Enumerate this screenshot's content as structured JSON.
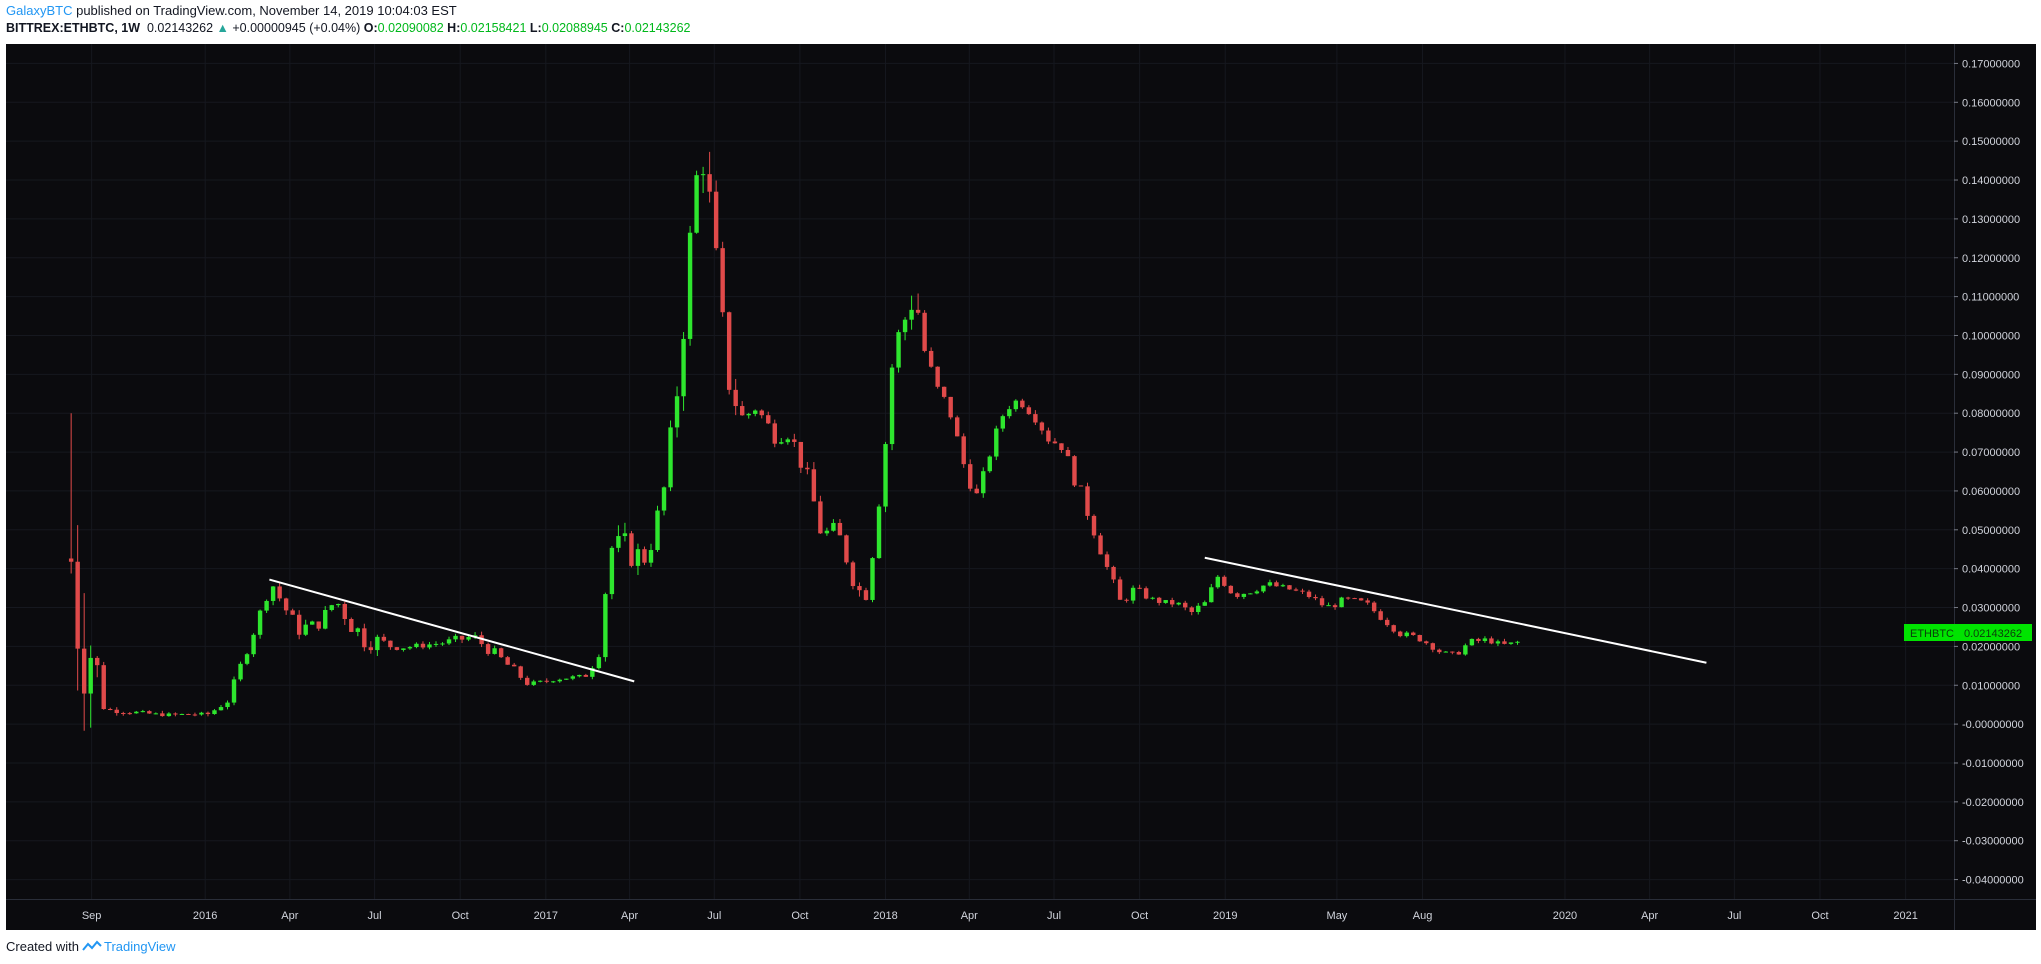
{
  "header": {
    "author": "GalaxyBTC",
    "published_text": "published on TradingView.com, November 14, 2019 10:04:03 EST",
    "symbol": "BITTREX:ETHBTC, 1W",
    "last": "0.02143262",
    "change": "+0.00000945 (+0.04%)",
    "open_label": "O:",
    "open": "0.02090082",
    "high_label": "H:",
    "high": "0.02158421",
    "low_label": "L:",
    "low": "0.02088945",
    "close_label": "C:",
    "close": "0.02143262"
  },
  "footer": {
    "created_with": "Created with",
    "brand": "TradingView"
  },
  "colors": {
    "background": "#0b0b0e",
    "up": "#2ee62e",
    "down": "#e04a4a",
    "trendline": "#ffffff",
    "axis_text": "#d1d4dc",
    "price_label": "#00e400"
  },
  "chart_data": {
    "type": "candlestick",
    "interval": "1W",
    "price_label": {
      "text": "ETHBTC",
      "value": "0.02143262"
    },
    "y_axis": {
      "min": -0.045,
      "max": 0.175,
      "ticks": [
        "0.17000000",
        "0.16000000",
        "0.15000000",
        "0.14000000",
        "0.13000000",
        "0.12000000",
        "0.11000000",
        "0.10000000",
        "0.09000000",
        "0.08000000",
        "0.07000000",
        "0.06000000",
        "0.05000000",
        "0.04000000",
        "0.03000000",
        "0.02000000",
        "0.01000000",
        "-0.00000000",
        "-0.01000000",
        "-0.02000000",
        "-0.03000000",
        "-0.04000000"
      ]
    },
    "x_axis": {
      "start": "2015-06-01",
      "end": "2021-02-22",
      "ticks": [
        {
          "label": "Sep",
          "date": "2015-09-01"
        },
        {
          "label": "2016",
          "date": "2016-01-01"
        },
        {
          "label": "Apr",
          "date": "2016-04-01"
        },
        {
          "label": "Jul",
          "date": "2016-07-01"
        },
        {
          "label": "Oct",
          "date": "2016-10-01"
        },
        {
          "label": "2017",
          "date": "2017-01-01"
        },
        {
          "label": "Apr",
          "date": "2017-04-01"
        },
        {
          "label": "Jul",
          "date": "2017-07-01"
        },
        {
          "label": "Oct",
          "date": "2017-10-01"
        },
        {
          "label": "2018",
          "date": "2018-01-01"
        },
        {
          "label": "Apr",
          "date": "2018-04-01"
        },
        {
          "label": "Jul",
          "date": "2018-07-01"
        },
        {
          "label": "Oct",
          "date": "2018-10-01"
        },
        {
          "label": "2019",
          "date": "2019-01-01"
        },
        {
          "label": "May",
          "date": "2019-05-01"
        },
        {
          "label": "Aug",
          "date": "2019-08-01"
        },
        {
          "label": "2020",
          "date": "2020-01-01"
        },
        {
          "label": "Apr",
          "date": "2020-04-01"
        },
        {
          "label": "Jul",
          "date": "2020-07-01"
        },
        {
          "label": "Oct",
          "date": "2020-10-01"
        },
        {
          "label": "2021",
          "date": "2021-01-01"
        }
      ]
    },
    "trendlines": [
      {
        "name": "trendline-2016",
        "from": {
          "date": "2016-03-10",
          "value": 0.0372
        },
        "to": {
          "date": "2017-04-06",
          "value": 0.011
        }
      },
      {
        "name": "trendline-2019",
        "from": {
          "date": "2018-12-10",
          "value": 0.0428
        },
        "to": {
          "date": "2020-06-01",
          "value": 0.0158
        }
      }
    ],
    "anchors": [
      [
        "2015-08-10",
        0.005,
        0.08
      ],
      [
        "2015-09-15",
        0.003,
        0.0045
      ],
      [
        "2015-11-15",
        0.002,
        0.0028
      ],
      [
        "2016-01-05",
        0.0022,
        0.003
      ],
      [
        "2016-01-25",
        0.005,
        0.007
      ],
      [
        "2016-02-20",
        0.021,
        0.024
      ],
      [
        "2016-03-12",
        0.035,
        0.038
      ],
      [
        "2016-04-08",
        0.022,
        0.027
      ],
      [
        "2016-05-01",
        0.024,
        0.027
      ],
      [
        "2016-05-20",
        0.03,
        0.034
      ],
      [
        "2016-06-15",
        0.019,
        0.027
      ],
      [
        "2016-07-25",
        0.019,
        0.02
      ],
      [
        "2016-09-15",
        0.02,
        0.022
      ],
      [
        "2016-10-15",
        0.021,
        0.024
      ],
      [
        "2016-11-15",
        0.015,
        0.018
      ],
      [
        "2016-12-15",
        0.009,
        0.011
      ],
      [
        "2017-01-10",
        0.011,
        0.012
      ],
      [
        "2017-02-15",
        0.012,
        0.013
      ],
      [
        "2017-03-01",
        0.018,
        0.022
      ],
      [
        "2017-03-10",
        0.043,
        0.048
      ],
      [
        "2017-03-25",
        0.04,
        0.05
      ],
      [
        "2017-04-20",
        0.04,
        0.045
      ],
      [
        "2017-05-10",
        0.06,
        0.065
      ],
      [
        "2017-05-25",
        0.085,
        0.1
      ],
      [
        "2017-06-10",
        0.135,
        0.142
      ],
      [
        "2017-06-20",
        0.14,
        0.155
      ],
      [
        "2017-07-01",
        0.11,
        0.13
      ],
      [
        "2017-07-15",
        0.085,
        0.095
      ],
      [
        "2017-07-30",
        0.075,
        0.082
      ],
      [
        "2017-08-15",
        0.08,
        0.083
      ],
      [
        "2017-09-01",
        0.072,
        0.078
      ],
      [
        "2017-09-20",
        0.073,
        0.077
      ],
      [
        "2017-10-10",
        0.06,
        0.065
      ],
      [
        "2017-10-25",
        0.045,
        0.052
      ],
      [
        "2017-11-10",
        0.048,
        0.052
      ],
      [
        "2017-11-30",
        0.033,
        0.038
      ],
      [
        "2017-12-10",
        0.03,
        0.035
      ],
      [
        "2017-12-20",
        0.045,
        0.05
      ],
      [
        "2018-01-01",
        0.07,
        0.075
      ],
      [
        "2018-01-10",
        0.095,
        0.1
      ],
      [
        "2018-01-20",
        0.1,
        0.105
      ],
      [
        "2018-02-01",
        0.103,
        0.124
      ],
      [
        "2018-02-10",
        0.095,
        0.1
      ],
      [
        "2018-02-25",
        0.085,
        0.088
      ],
      [
        "2018-03-10",
        0.08,
        0.083
      ],
      [
        "2018-03-25",
        0.065,
        0.07
      ],
      [
        "2018-04-10",
        0.056,
        0.06
      ],
      [
        "2018-04-25",
        0.07,
        0.073
      ],
      [
        "2018-05-10",
        0.08,
        0.083
      ],
      [
        "2018-05-25",
        0.082,
        0.085
      ],
      [
        "2018-06-10",
        0.078,
        0.081
      ],
      [
        "2018-06-25",
        0.072,
        0.075
      ],
      [
        "2018-07-10",
        0.07,
        0.073
      ],
      [
        "2018-07-25",
        0.06,
        0.064
      ],
      [
        "2018-08-10",
        0.05,
        0.055
      ],
      [
        "2018-08-25",
        0.04,
        0.043
      ],
      [
        "2018-09-10",
        0.03,
        0.033
      ],
      [
        "2018-09-25",
        0.033,
        0.036
      ],
      [
        "2018-10-20",
        0.031,
        0.032
      ],
      [
        "2018-11-10",
        0.03,
        0.032
      ],
      [
        "2018-11-25",
        0.027,
        0.03
      ],
      [
        "2018-12-10",
        0.03,
        0.032
      ],
      [
        "2018-12-25",
        0.037,
        0.04
      ],
      [
        "2019-01-10",
        0.032,
        0.035
      ],
      [
        "2019-01-25",
        0.033,
        0.035
      ],
      [
        "2019-02-15",
        0.035,
        0.037
      ],
      [
        "2019-03-10",
        0.034,
        0.0355
      ],
      [
        "2019-04-01",
        0.032,
        0.034
      ],
      [
        "2019-04-20",
        0.029,
        0.031
      ],
      [
        "2019-05-10",
        0.031,
        0.033
      ],
      [
        "2019-06-01",
        0.03,
        0.032
      ],
      [
        "2019-06-20",
        0.026,
        0.028
      ],
      [
        "2019-07-10",
        0.022,
        0.024
      ],
      [
        "2019-07-30",
        0.021,
        0.023
      ],
      [
        "2019-08-20",
        0.018,
        0.019
      ],
      [
        "2019-09-05",
        0.017,
        0.0185
      ],
      [
        "2019-09-20",
        0.02,
        0.022
      ],
      [
        "2019-10-10",
        0.021,
        0.0225
      ],
      [
        "2019-10-25",
        0.0195,
        0.021
      ],
      [
        "2019-11-11",
        0.0209,
        0.0214
      ]
    ]
  }
}
